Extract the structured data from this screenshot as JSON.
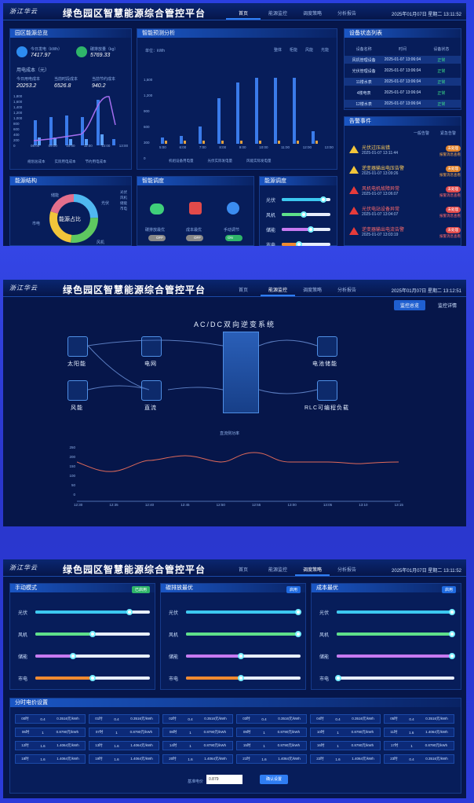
{
  "app": {
    "title": "绿色园区智慧能源综合管控平台",
    "logo": "浙江华云"
  },
  "tabs": [
    "首页",
    "能源监控",
    "调度策略",
    "分析报告"
  ],
  "screen1": {
    "clock": "2025年01月07日  星期二  13:11:52",
    "overview": {
      "title": "园区能源总览",
      "gen_label": "今日发电（kWh）",
      "gen_value": "7417.97",
      "carbon_label": "碳排放量（kg）",
      "carbon_value": "5769.33",
      "cost_title": "用电成本（元）",
      "cost_labels": [
        "今日用电成本",
        "当前时段成本",
        "当前节约成本"
      ],
      "cost_values": [
        "20253.2",
        "6526.8",
        "940.2"
      ],
      "chart_yticks": [
        "1,800",
        "1,600",
        "1,400",
        "1,200",
        "1,000",
        "800",
        "600",
        "400",
        "200",
        "0"
      ],
      "chart_x": [
        "08:00",
        "09:00",
        "10:00",
        "11:00",
        "12:00",
        "13:00"
      ],
      "legend": [
        "规划总成本",
        "实际用电成本",
        "节约用电成本"
      ]
    },
    "forecast": {
      "title": "智能预测分析",
      "unit": "单位：kWh",
      "options": [
        "整体",
        "柜能",
        "风能",
        "光能"
      ],
      "yticks": [
        "1,500",
        "1,200",
        "900",
        "600",
        "300",
        "0"
      ],
      "xticks": [
        "5:00",
        "6:00",
        "7:00",
        "8:00",
        "9:00",
        "10:00",
        "11:00",
        "12:00",
        "13:00"
      ],
      "legend": [
        "机组设备用电量",
        "光伏实际发电量",
        "风能实际发电量"
      ]
    },
    "device": {
      "title": "设备状态列表",
      "headers": [
        "设备名称",
        "时间",
        "设备状态"
      ],
      "rows": [
        [
          "风机管理设备",
          "2025-01-07 13:06:04",
          "正常"
        ],
        [
          "光伏管理设备",
          "2025-01-07 13:06:04",
          "正常"
        ],
        [
          "11楼水表",
          "2025-01-07 13:06:04",
          "正常"
        ],
        [
          "4楼电表",
          "2025-01-07 13:06:04",
          "正常"
        ],
        [
          "12楼水表",
          "2025-01-07 13:06:04",
          "正常"
        ]
      ]
    },
    "alarm": {
      "title": "告警事件",
      "legend": [
        "一般告警",
        "紧急告警"
      ],
      "items": [
        {
          "title": "光伏过压出错",
          "time": "2025-01-07 13:11:44",
          "btn": "未处理",
          "link": "报警消息查看"
        },
        {
          "title": "逆变器输出电压告警",
          "time": "2025-01-07 13:09:26",
          "btn": "未处理",
          "link": "报警消息查看"
        },
        {
          "title": "风机电机故障异常",
          "time": "2025-01-07 13:06:07",
          "btn": "未处理",
          "link": "报警消息查看"
        },
        {
          "title": "光伏电站设备异常",
          "time": "2025-01-07 13:04:07",
          "btn": "未处理",
          "link": "报警消息查看"
        },
        {
          "title": "逆变器输出电流告警",
          "time": "2025-01-07 13:03:19",
          "btn": "未处理",
          "link": "报警消息查看"
        }
      ]
    },
    "structure": {
      "title": "能源结构",
      "center": "能源占比",
      "labels": [
        "储能",
        "光伏",
        "风机",
        "市电"
      ],
      "legend": [
        "光伏",
        "风机",
        "储能",
        "市电"
      ]
    },
    "schedule": {
      "title": "智能调度",
      "items": [
        "碳排放最优",
        "成本最优",
        "手动调节"
      ],
      "states": [
        "OFF",
        "OFF",
        "ON"
      ]
    },
    "dispatch": {
      "title": "能源调度",
      "labels": [
        "光伏",
        "风机",
        "储能",
        "市电"
      ],
      "levels": [
        0.85,
        0.45,
        0.6,
        0.35
      ]
    }
  },
  "screen2": {
    "clock": "2025年01月07日  星期二  13:12:51",
    "subtabs": [
      "监控总览",
      "监控详情"
    ],
    "system": "AC/DC双向逆变系统",
    "nodes": [
      "太阳能",
      "电网",
      "风能",
      "直流",
      "电池储能",
      "RLC可编程负载"
    ],
    "legend": "直流侧功率",
    "yticks": [
      "250",
      "200",
      "150",
      "100",
      "50",
      "0"
    ],
    "xticks": [
      "12:30",
      "12:35",
      "12:40",
      "12:45",
      "12:50",
      "12:55",
      "13:00",
      "13:05",
      "13:10",
      "13:15"
    ]
  },
  "screen3": {
    "clock": "2025年01月07日  星期二  13:11:52",
    "panels": [
      {
        "title": "手动模式",
        "tag": "已启用",
        "labels": [
          "光伏",
          "风机",
          "储能",
          "市电"
        ],
        "levels": [
          0.82,
          0.5,
          0.33,
          0.5
        ]
      },
      {
        "title": "碳排放最优",
        "tag": "启用",
        "labels": [
          "光伏",
          "风机",
          "储能",
          "市电"
        ],
        "levels": [
          0.98,
          0.98,
          0.48,
          0.48
        ]
      },
      {
        "title": "成本最优",
        "tag": "启用",
        "labels": [
          "光伏",
          "风机",
          "储能",
          "市电"
        ],
        "levels": [
          0.98,
          0.98,
          0.98,
          0.01
        ]
      }
    ],
    "price_title": "分时电价设置",
    "price_rows": [
      [
        [
          "00时",
          "0.4",
          "0.3516元/kWh"
        ],
        [
          "01时",
          "0.4",
          "0.3516元/kWh"
        ],
        [
          "02时",
          "0.4",
          "0.3516元/kWh"
        ],
        [
          "03时",
          "0.4",
          "0.3516元/kWh"
        ],
        [
          "04时",
          "0.4",
          "0.3516元/kWh"
        ],
        [
          "05时",
          "0.4",
          "0.3516元/kWh"
        ]
      ],
      [
        [
          "06时",
          "1",
          "0.8790元/kWh"
        ],
        [
          "07时",
          "1",
          "0.8790元/kWh"
        ],
        [
          "08时",
          "1",
          "0.8790元/kWh"
        ],
        [
          "09时",
          "1",
          "0.8790元/kWh"
        ],
        [
          "10时",
          "1",
          "0.8790元/kWh"
        ],
        [
          "11时",
          "1.6",
          "1.4064元/kWh"
        ]
      ],
      [
        [
          "12时",
          "1.6",
          "1.4064元/kWh"
        ],
        [
          "13时",
          "1.6",
          "1.4064元/kWh"
        ],
        [
          "14时",
          "1",
          "0.8790元/kWh"
        ],
        [
          "15时",
          "1",
          "0.8790元/kWh"
        ],
        [
          "16时",
          "1",
          "0.8790元/kWh"
        ],
        [
          "17时",
          "1",
          "0.8790元/kWh"
        ]
      ],
      [
        [
          "18时",
          "1.6",
          "1.4064元/kWh"
        ],
        [
          "19时",
          "1.6",
          "1.4064元/kWh"
        ],
        [
          "20时",
          "1.6",
          "1.4064元/kWh"
        ],
        [
          "21时",
          "1.6",
          "1.4064元/kWh"
        ],
        [
          "22时",
          "1.6",
          "1.4064元/kWh"
        ],
        [
          "23时",
          "0.4",
          "0.3516元/kWh"
        ]
      ]
    ],
    "base_label": "基准电价",
    "base_value": "0.879",
    "confirm": "确认设置"
  }
}
